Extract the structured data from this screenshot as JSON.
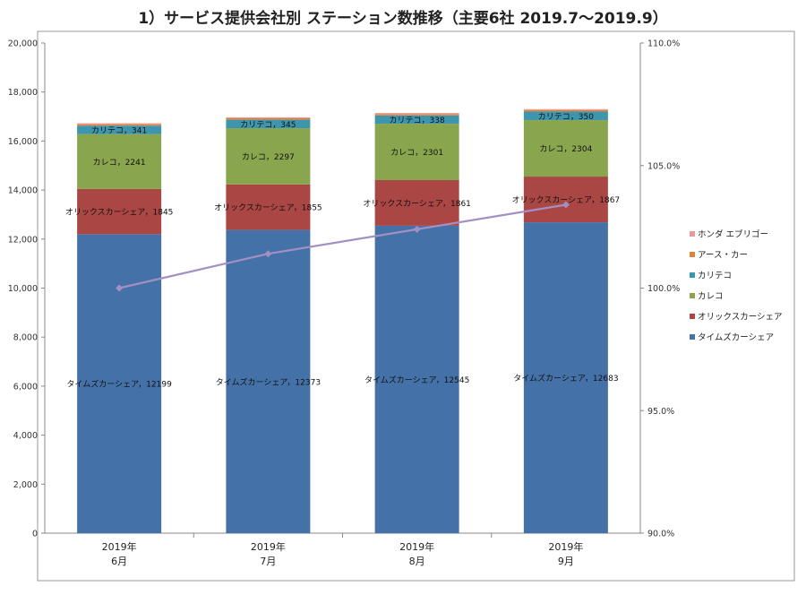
{
  "chart_data": {
    "type": "bar",
    "stacked": true,
    "title": "1）サービス提供会社別 ステーション数推移（主要6社 2019.7～2019.9）",
    "categories": [
      [
        "2019年",
        "6月"
      ],
      [
        "2019年",
        "7月"
      ],
      [
        "2019年",
        "8月"
      ],
      [
        "2019年",
        "9月"
      ]
    ],
    "series": [
      {
        "name": "タイムズカーシェア",
        "color": "#4472a8",
        "values": [
          12199,
          12373,
          12545,
          12683
        ],
        "labels": [
          "タイムズカーシェア，12199",
          "タイムズカーシェア，12373",
          "タイムズカーシェア，12545",
          "タイムズカーシェア，12683"
        ]
      },
      {
        "name": "オリックスカーシェア",
        "color": "#aa4643",
        "values": [
          1845,
          1855,
          1861,
          1867
        ],
        "labels": [
          "オリックスカーシェア，1845",
          "オリックスカーシェア，1855",
          "オリックスカーシェア，1861",
          "オリックスカーシェア，1867"
        ]
      },
      {
        "name": "カレコ",
        "color": "#89a54e",
        "values": [
          2241,
          2297,
          2301,
          2304
        ],
        "labels": [
          "カレコ，2241",
          "カレコ，2297",
          "カレコ，2301",
          "カレコ，2304"
        ]
      },
      {
        "name": "カリテコ",
        "color": "#3d96ae",
        "values": [
          341,
          345,
          338,
          350
        ],
        "labels": [
          "カリテコ，341",
          "カリテコ，345",
          "カリテコ，338",
          "カリテコ，350"
        ]
      },
      {
        "name": "アース・カー",
        "color": "#db843d",
        "values": [
          60,
          60,
          60,
          60
        ],
        "labels": [
          "",
          "",
          "",
          ""
        ]
      },
      {
        "name": "ホンダ エブリゴー",
        "color": "#e89a9a",
        "values": [
          40,
          40,
          40,
          40
        ],
        "labels": [
          "",
          "",
          "",
          ""
        ]
      }
    ],
    "line": {
      "color": "#a38fc4",
      "values": [
        100.0,
        101.4,
        102.4,
        103.4
      ]
    },
    "y_left": {
      "min": 0,
      "max": 20000,
      "step": 2000,
      "ticks": [
        "0",
        "2,000",
        "4,000",
        "6,000",
        "8,000",
        "10,000",
        "12,000",
        "14,000",
        "16,000",
        "18,000",
        "20,000"
      ]
    },
    "y_right": {
      "min": 90,
      "max": 110,
      "step": 5,
      "ticks": [
        "90.0%",
        "95.0%",
        "100.0%",
        "105.0%",
        "110.0%"
      ]
    },
    "legend": {
      "position": "right",
      "entries": [
        "ホンダ エブリゴー",
        "アース・カー",
        "カリテコ",
        "カレコ",
        "オリックスカーシェア",
        "タイムズカーシェア"
      ]
    },
    "grid": false
  }
}
